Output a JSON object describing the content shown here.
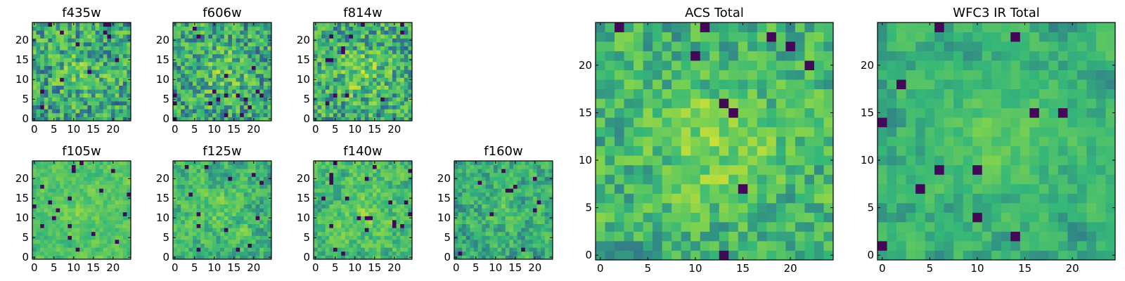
{
  "figure": {
    "background": "#ffffff"
  },
  "colormap": [
    "#440154",
    "#31688e",
    "#35b779",
    "#7ad151",
    "#fde725"
  ],
  "chart_data": [
    {
      "type": "heatmap",
      "name": "f435w",
      "title": "f435w",
      "size": 25,
      "seed": 11,
      "mean": 0.5,
      "spread": 0.32,
      "smooth": 0.1,
      "blob": 0.12,
      "x_ticks": [
        0,
        5,
        10,
        15,
        20
      ],
      "y_ticks": [
        0,
        5,
        10,
        15,
        20
      ],
      "x_tick_labels": [
        "0",
        "5",
        "10",
        "15",
        "20"
      ],
      "y_tick_labels": [
        "0",
        "5",
        "10",
        "15",
        "20"
      ]
    },
    {
      "type": "heatmap",
      "name": "f606w",
      "title": "f606w",
      "size": 25,
      "seed": 23,
      "mean": 0.5,
      "spread": 0.32,
      "smooth": 0.1,
      "blob": 0.16,
      "x_ticks": [
        0,
        5,
        10,
        15,
        20
      ],
      "y_ticks": [
        0,
        5,
        10,
        15,
        20
      ],
      "x_tick_labels": [
        "0",
        "5",
        "10",
        "15",
        "20"
      ],
      "y_tick_labels": [
        "0",
        "5",
        "10",
        "15",
        "20"
      ]
    },
    {
      "type": "heatmap",
      "name": "f814w",
      "title": "f814w",
      "size": 25,
      "seed": 37,
      "mean": 0.52,
      "spread": 0.32,
      "smooth": 0.1,
      "blob": 0.16,
      "x_ticks": [
        0,
        5,
        10,
        15,
        20
      ],
      "y_ticks": [
        0,
        5,
        10,
        15,
        20
      ],
      "x_tick_labels": [
        "0",
        "5",
        "10",
        "15",
        "20"
      ],
      "y_tick_labels": [
        "0",
        "5",
        "10",
        "15",
        "20"
      ]
    },
    {
      "type": "heatmap",
      "name": "f105w",
      "title": "f105w",
      "size": 25,
      "seed": 41,
      "mean": 0.6,
      "spread": 0.26,
      "smooth": 0.55,
      "blob": 0.1,
      "x_ticks": [
        0,
        5,
        10,
        15,
        20
      ],
      "y_ticks": [
        0,
        5,
        10,
        15,
        20
      ],
      "x_tick_labels": [
        "0",
        "5",
        "10",
        "15",
        "20"
      ],
      "y_tick_labels": [
        "0",
        "5",
        "10",
        "15",
        "20"
      ]
    },
    {
      "type": "heatmap",
      "name": "f125w",
      "title": "f125w",
      "size": 25,
      "seed": 53,
      "mean": 0.55,
      "spread": 0.3,
      "smooth": 0.45,
      "blob": 0.08,
      "x_ticks": [
        0,
        5,
        10,
        15,
        20
      ],
      "y_ticks": [
        0,
        5,
        10,
        15,
        20
      ],
      "x_tick_labels": [
        "0",
        "5",
        "10",
        "15",
        "20"
      ],
      "y_tick_labels": [
        "0",
        "5",
        "10",
        "15",
        "20"
      ]
    },
    {
      "type": "heatmap",
      "name": "f140w",
      "title": "f140w",
      "size": 25,
      "seed": 67,
      "mean": 0.58,
      "spread": 0.3,
      "smooth": 0.45,
      "blob": 0.1,
      "x_ticks": [
        0,
        5,
        10,
        15,
        20
      ],
      "y_ticks": [
        0,
        5,
        10,
        15,
        20
      ],
      "x_tick_labels": [
        "0",
        "5",
        "10",
        "15",
        "20"
      ],
      "y_tick_labels": [
        "0",
        "5",
        "10",
        "15",
        "20"
      ]
    },
    {
      "type": "heatmap",
      "name": "f160w",
      "title": "f160w",
      "size": 25,
      "seed": 79,
      "mean": 0.5,
      "spread": 0.3,
      "smooth": 0.45,
      "blob": 0.1,
      "x_ticks": [
        0,
        5,
        10,
        15,
        20
      ],
      "y_ticks": [
        0,
        5,
        10,
        15,
        20
      ],
      "x_tick_labels": [
        "0",
        "5",
        "10",
        "15",
        "20"
      ],
      "y_tick_labels": [
        "0",
        "5",
        "10",
        "15",
        "20"
      ]
    },
    {
      "type": "heatmap",
      "name": "acs-total",
      "title": "ACS Total",
      "size": 25,
      "seed": 97,
      "mean": 0.55,
      "spread": 0.27,
      "smooth": 0.25,
      "blob": 0.18,
      "x_ticks": [
        0,
        5,
        10,
        15,
        20
      ],
      "y_ticks": [
        0,
        5,
        10,
        15,
        20
      ],
      "x_tick_labels": [
        "0",
        "5",
        "10",
        "15",
        "20"
      ],
      "y_tick_labels": [
        "0",
        "5",
        "10",
        "15",
        "20"
      ]
    },
    {
      "type": "heatmap",
      "name": "wfc3-ir-total",
      "title": "WFC3 IR Total",
      "size": 25,
      "seed": 113,
      "mean": 0.5,
      "spread": 0.24,
      "smooth": 0.55,
      "blob": 0.14,
      "x_ticks": [
        0,
        5,
        10,
        15,
        20
      ],
      "y_ticks": [
        0,
        5,
        10,
        15,
        20
      ],
      "x_tick_labels": [
        "0",
        "5",
        "10",
        "15",
        "20"
      ],
      "y_tick_labels": [
        "0",
        "5",
        "10",
        "15",
        "20"
      ]
    }
  ]
}
